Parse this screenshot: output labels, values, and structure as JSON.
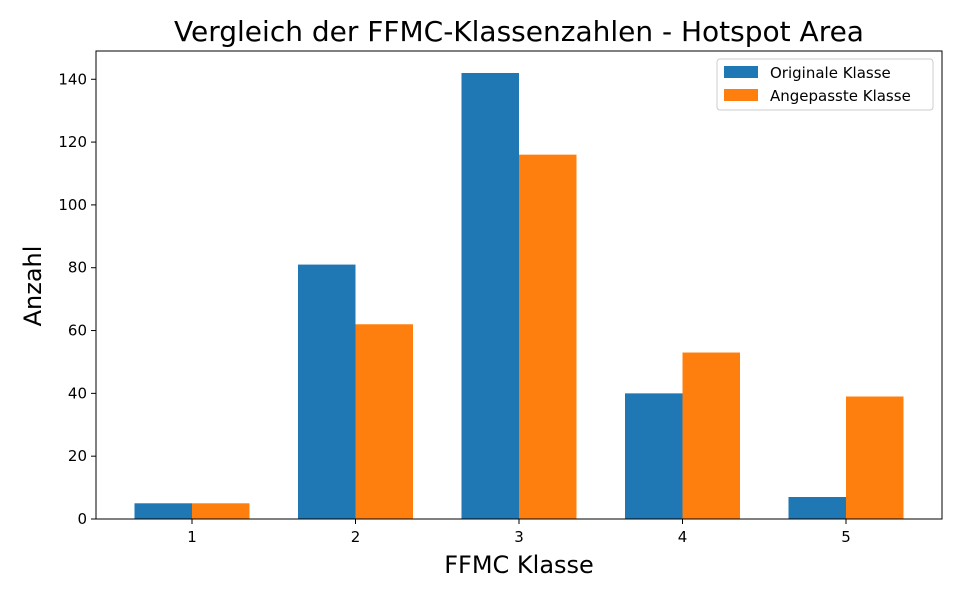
{
  "chart_data": {
    "type": "bar",
    "title": "Vergleich der FFMC-Klassenzahlen - Hotspot Area",
    "xlabel": "FFMC Klasse",
    "ylabel": "Anzahl",
    "categories": [
      "1",
      "2",
      "3",
      "4",
      "5"
    ],
    "ylim": [
      0,
      149
    ],
    "yticks": [
      0,
      20,
      40,
      60,
      80,
      100,
      120,
      140
    ],
    "grid": false,
    "legend_position": "top-right",
    "series": [
      {
        "name": "Originale Klasse",
        "color": "#1f77b4",
        "values": [
          5,
          81,
          142,
          40,
          7
        ]
      },
      {
        "name": "Angepasste Klasse",
        "color": "#ff7f0e",
        "values": [
          5,
          62,
          116,
          53,
          39
        ]
      }
    ]
  }
}
